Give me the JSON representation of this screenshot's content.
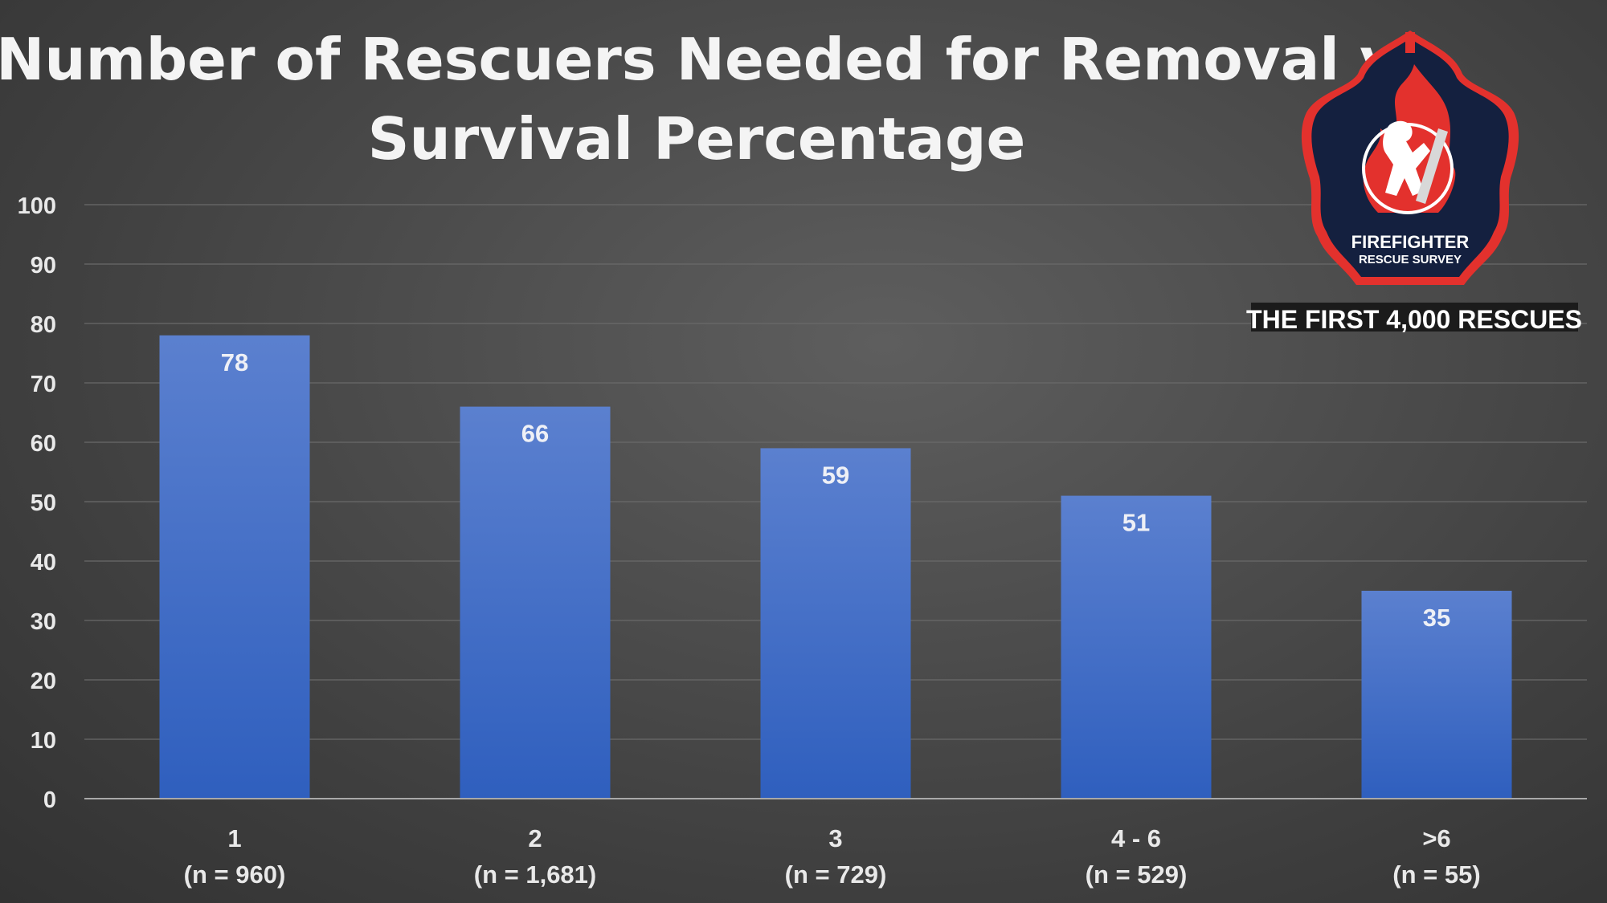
{
  "title_lines": [
    "Number of Rescuers Needed for Removal v",
    "Survival Percentage"
  ],
  "logo": {
    "line1": "FIREFIGHTER",
    "line2": "RESCUE SURVEY",
    "tagline": "THE FIRST 4,000 RESCUES"
  },
  "colors": {
    "bar_top": "#5b80cf",
    "bar_bottom": "#2f5fbe",
    "logo_navy": "#14203f",
    "logo_red": "#e3312d"
  },
  "chart_data": {
    "type": "bar",
    "title": "Number of Rescuers Needed for Removal v Survival Percentage",
    "categories": [
      [
        "1",
        "(n = 960)"
      ],
      [
        "2",
        "(n = 1,681)"
      ],
      [
        "3",
        "(n = 729)"
      ],
      [
        "4 - 6",
        "(n = 529)"
      ],
      [
        ">6",
        "(n = 55)"
      ]
    ],
    "values": [
      78,
      66,
      59,
      51,
      35
    ],
    "ylim": [
      0,
      100
    ],
    "yticks": [
      0,
      10,
      20,
      30,
      40,
      50,
      60,
      70,
      80,
      90,
      100
    ],
    "grid": true,
    "data_labels": true
  }
}
